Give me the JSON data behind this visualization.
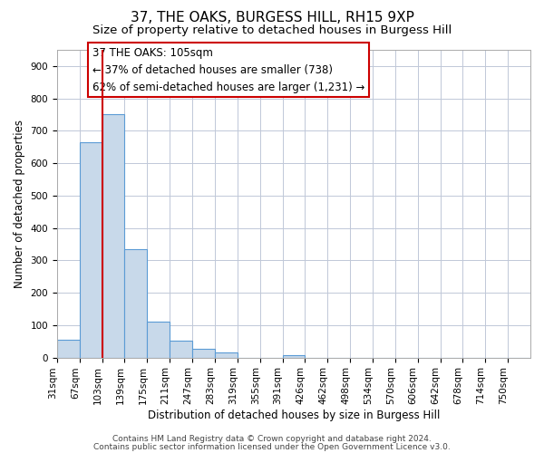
{
  "title": "37, THE OAKS, BURGESS HILL, RH15 9XP",
  "subtitle": "Size of property relative to detached houses in Burgess Hill",
  "xlabel": "Distribution of detached houses by size in Burgess Hill",
  "ylabel": "Number of detached properties",
  "bin_labels": [
    "31sqm",
    "67sqm",
    "103sqm",
    "139sqm",
    "175sqm",
    "211sqm",
    "247sqm",
    "283sqm",
    "319sqm",
    "355sqm",
    "391sqm",
    "426sqm",
    "462sqm",
    "498sqm",
    "534sqm",
    "570sqm",
    "606sqm",
    "642sqm",
    "678sqm",
    "714sqm",
    "750sqm"
  ],
  "bar_values": [
    55,
    665,
    750,
    335,
    110,
    52,
    27,
    15,
    0,
    0,
    7,
    0,
    0,
    0,
    0,
    0,
    0,
    0,
    0,
    0,
    0
  ],
  "bar_color": "#c8d9ea",
  "bar_edge_color": "#5b9bd5",
  "highlight_line_color": "#cc0000",
  "ylim": [
    0,
    950
  ],
  "yticks": [
    0,
    100,
    200,
    300,
    400,
    500,
    600,
    700,
    800,
    900
  ],
  "annotation_line1": "37 THE OAKS: 105sqm",
  "annotation_line2": "← 37% of detached houses are smaller (738)",
  "annotation_line3": "62% of semi-detached houses are larger (1,231) →",
  "footer_line1": "Contains HM Land Registry data © Crown copyright and database right 2024.",
  "footer_line2": "Contains public sector information licensed under the Open Government Licence v3.0.",
  "bg_color": "#ffffff",
  "grid_color": "#c0c8d8",
  "title_fontsize": 11,
  "subtitle_fontsize": 9.5,
  "axis_label_fontsize": 8.5,
  "tick_fontsize": 7.5,
  "annotation_fontsize": 8.5,
  "footer_fontsize": 6.5
}
